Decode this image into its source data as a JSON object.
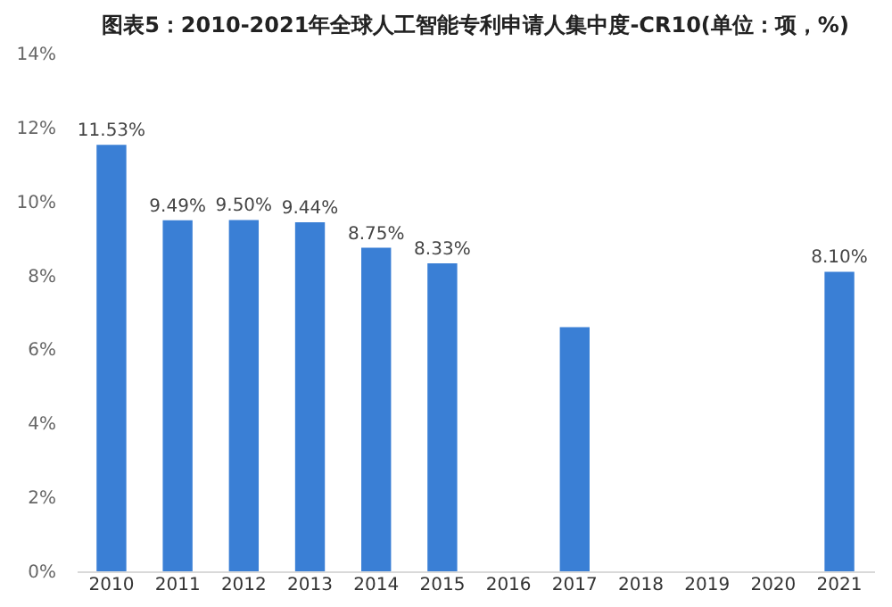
{
  "chart_data": {
    "type": "bar",
    "title": "图表5：2010-2021年全球人工智能专利申请人集中度-CR10(单位：项，%)",
    "categories": [
      "2010",
      "2011",
      "2012",
      "2013",
      "2014",
      "2015",
      "2016",
      "2017",
      "2018",
      "2019",
      "2020",
      "2021"
    ],
    "values": [
      11.53,
      9.49,
      9.5,
      9.44,
      8.75,
      8.33,
      null,
      6.6,
      null,
      null,
      null,
      8.1
    ],
    "value_labels": [
      "11.53%",
      "9.49%",
      "9.50%",
      "9.44%",
      "8.75%",
      "8.33%",
      null,
      null,
      null,
      null,
      null,
      "8.10%"
    ],
    "color": "#3a7fd5",
    "ylim": [
      0,
      14
    ],
    "yticks": [
      {
        "value": 0,
        "label": "0%"
      },
      {
        "value": 2,
        "label": "2%"
      },
      {
        "value": 4,
        "label": "4%"
      },
      {
        "value": 6,
        "label": "6%"
      },
      {
        "value": 8,
        "label": "8%"
      },
      {
        "value": 10,
        "label": "10%"
      },
      {
        "value": 12,
        "label": "12%"
      },
      {
        "value": 14,
        "label": "14%"
      }
    ],
    "grid": false
  }
}
